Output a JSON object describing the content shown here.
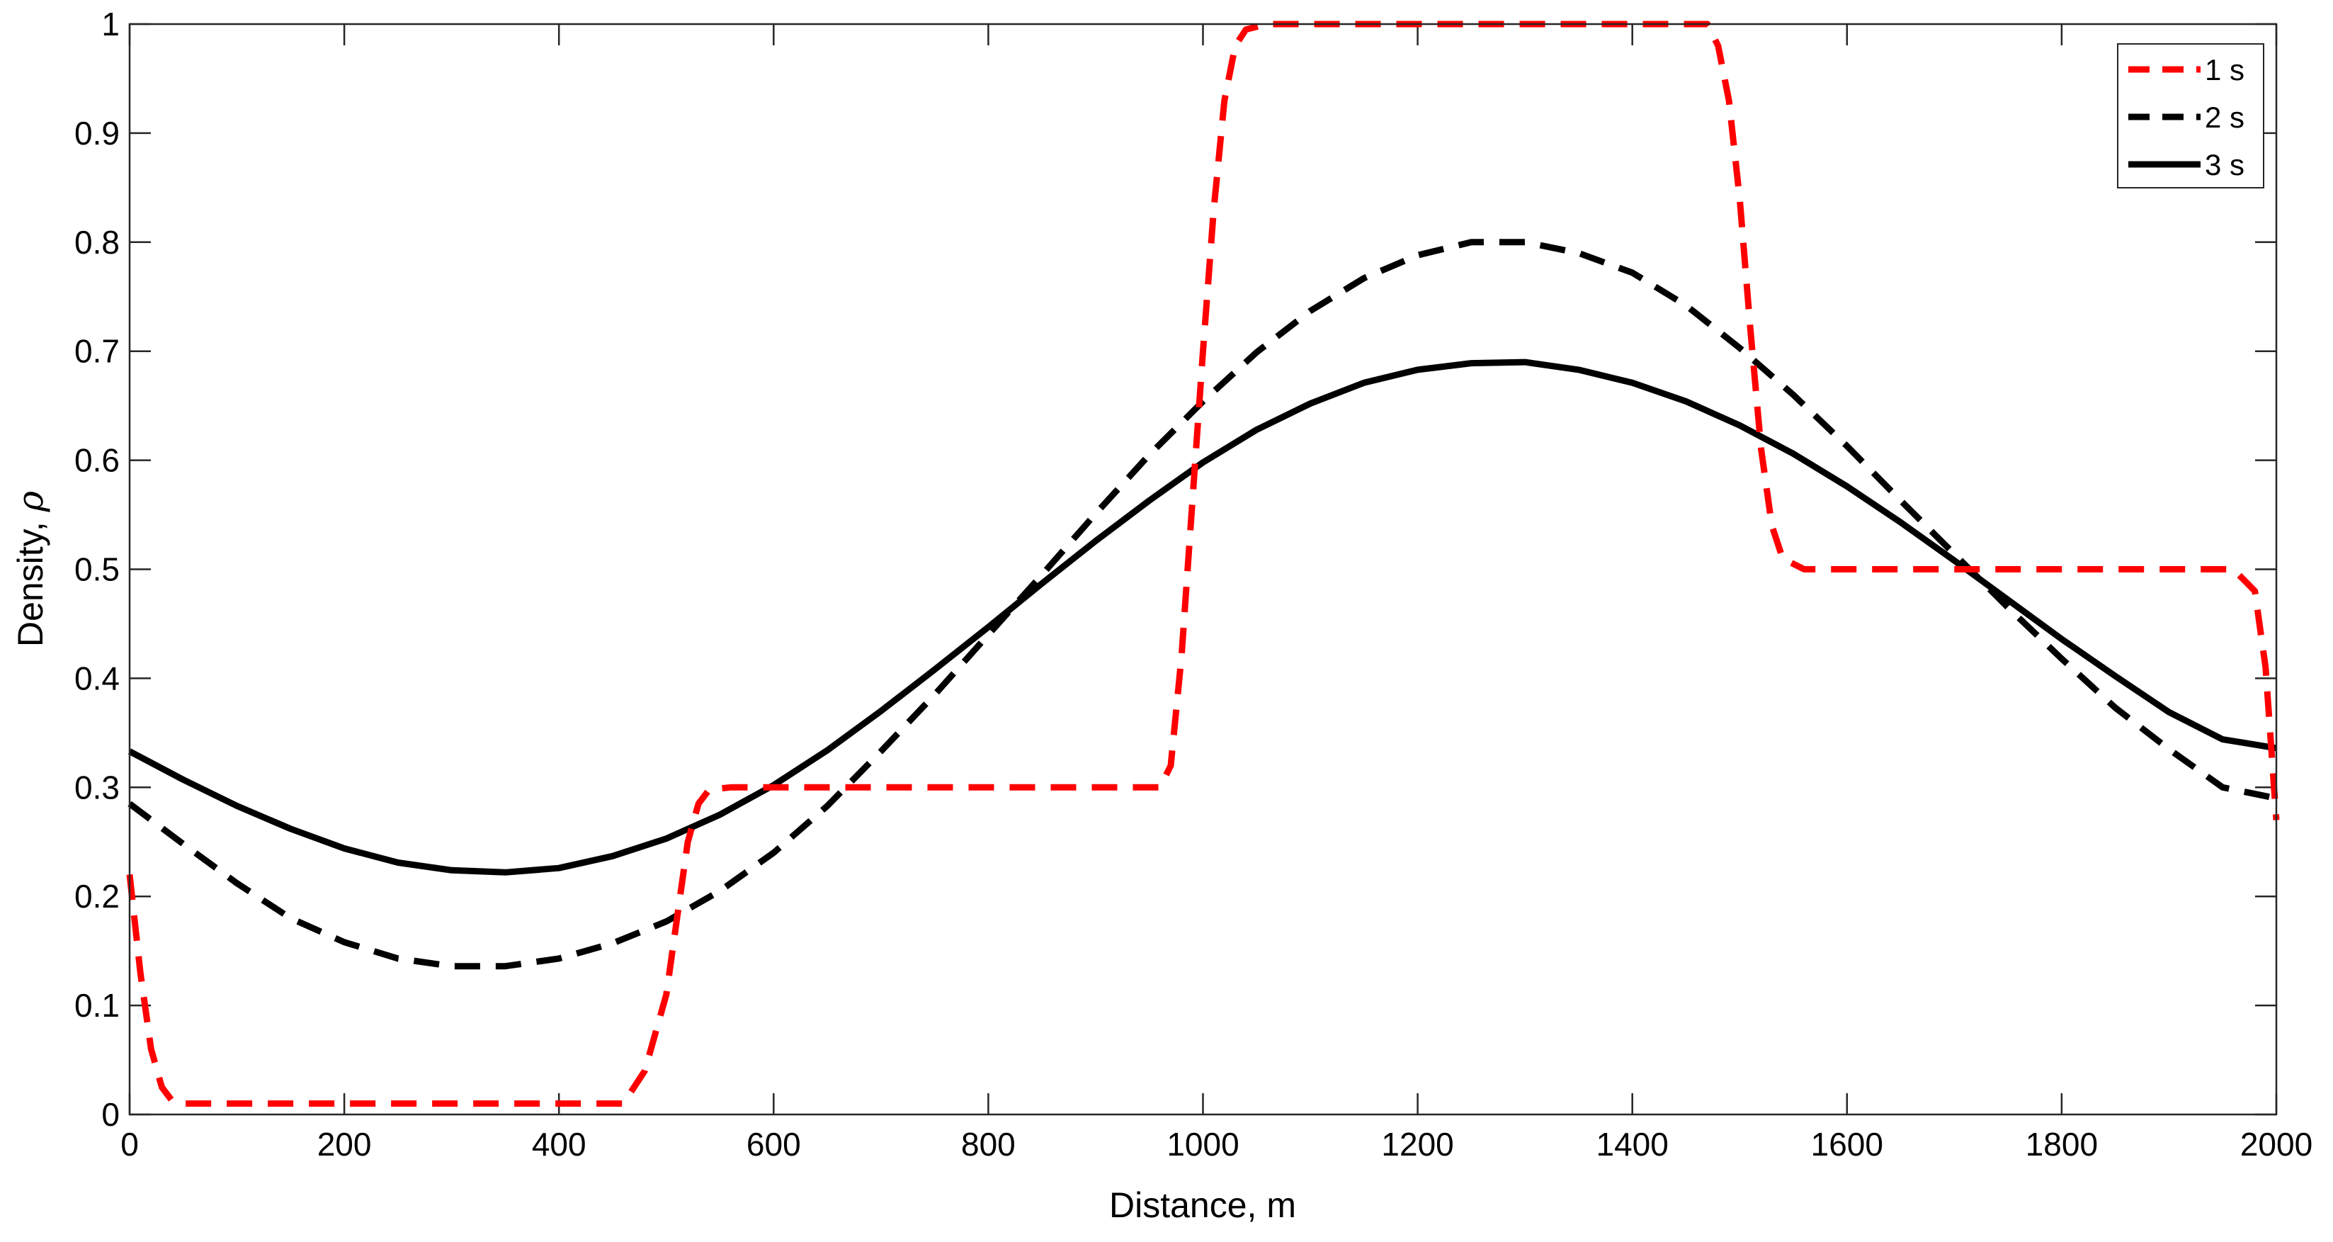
{
  "chart_data": {
    "type": "line",
    "title": "",
    "xlabel": "Distance, m",
    "ylabel": "Density, ",
    "ylabel_symbol": "ρ",
    "xlim": [
      0,
      2000
    ],
    "ylim": [
      0,
      1
    ],
    "xticks": [
      0,
      200,
      400,
      600,
      800,
      1000,
      1200,
      1400,
      1600,
      1800,
      2000
    ],
    "yticks": [
      0,
      0.1,
      0.2,
      0.3,
      0.4,
      0.5,
      0.6,
      0.7,
      0.8,
      0.9,
      1
    ],
    "xtick_labels": [
      "0",
      "200",
      "400",
      "600",
      "800",
      "1000",
      "1200",
      "1400",
      "1600",
      "1800",
      "2000"
    ],
    "ytick_labels": [
      "0",
      "0.1",
      "0.2",
      "0.3",
      "0.4",
      "0.5",
      "0.6",
      "0.7",
      "0.8",
      "0.9",
      "1"
    ],
    "grid": false,
    "legend_position": "top-right",
    "series": [
      {
        "name": "1 s",
        "color": "#ff0000",
        "style": "dashed",
        "x": [
          0,
          10,
          20,
          30,
          40,
          50,
          100,
          200,
          300,
          400,
          460,
          480,
          500,
          510,
          520,
          530,
          540,
          560,
          600,
          700,
          800,
          900,
          960,
          970,
          980,
          990,
          1000,
          1010,
          1020,
          1030,
          1040,
          1060,
          1100,
          1200,
          1300,
          1400,
          1470,
          1480,
          1490,
          1500,
          1510,
          1520,
          1530,
          1540,
          1560,
          1600,
          1700,
          1800,
          1900,
          1960,
          1980,
          1990,
          2000
        ],
        "y": [
          0.22,
          0.13,
          0.06,
          0.025,
          0.012,
          0.01,
          0.01,
          0.01,
          0.01,
          0.01,
          0.01,
          0.04,
          0.11,
          0.18,
          0.25,
          0.285,
          0.298,
          0.3,
          0.3,
          0.3,
          0.3,
          0.3,
          0.3,
          0.32,
          0.42,
          0.56,
          0.7,
          0.83,
          0.93,
          0.98,
          0.995,
          1.0,
          1.0,
          1.0,
          1.0,
          1.0,
          1.0,
          0.98,
          0.93,
          0.84,
          0.72,
          0.61,
          0.54,
          0.51,
          0.5,
          0.5,
          0.5,
          0.5,
          0.5,
          0.5,
          0.48,
          0.41,
          0.27
        ]
      },
      {
        "name": "2 s",
        "color": "#000000",
        "style": "dashed",
        "x": [
          0,
          50,
          100,
          150,
          200,
          250,
          300,
          350,
          400,
          450,
          500,
          550,
          600,
          650,
          700,
          750,
          800,
          850,
          900,
          950,
          1000,
          1050,
          1100,
          1150,
          1200,
          1250,
          1300,
          1350,
          1400,
          1450,
          1500,
          1550,
          1600,
          1650,
          1700,
          1750,
          1800,
          1850,
          1900,
          1950,
          2000
        ],
        "y": [
          0.285,
          0.248,
          0.212,
          0.18,
          0.158,
          0.143,
          0.136,
          0.136,
          0.143,
          0.157,
          0.177,
          0.205,
          0.24,
          0.283,
          0.333,
          0.385,
          0.44,
          0.495,
          0.551,
          0.605,
          0.654,
          0.699,
          0.737,
          0.767,
          0.788,
          0.8,
          0.8,
          0.79,
          0.772,
          0.742,
          0.703,
          0.66,
          0.613,
          0.563,
          0.514,
          0.465,
          0.418,
          0.373,
          0.335,
          0.3,
          0.29
        ]
      },
      {
        "name": "3 s",
        "color": "#000000",
        "style": "solid",
        "x": [
          0,
          50,
          100,
          150,
          200,
          250,
          300,
          350,
          400,
          450,
          500,
          550,
          600,
          650,
          700,
          750,
          800,
          850,
          900,
          950,
          1000,
          1050,
          1100,
          1150,
          1200,
          1250,
          1300,
          1350,
          1400,
          1450,
          1500,
          1550,
          1600,
          1650,
          1700,
          1750,
          1800,
          1850,
          1900,
          1950,
          2000
        ],
        "y": [
          0.333,
          0.307,
          0.283,
          0.262,
          0.244,
          0.231,
          0.224,
          0.222,
          0.226,
          0.237,
          0.253,
          0.275,
          0.302,
          0.334,
          0.37,
          0.408,
          0.447,
          0.487,
          0.526,
          0.563,
          0.598,
          0.628,
          0.652,
          0.671,
          0.683,
          0.689,
          0.69,
          0.683,
          0.671,
          0.654,
          0.632,
          0.606,
          0.576,
          0.543,
          0.508,
          0.472,
          0.436,
          0.402,
          0.369,
          0.344,
          0.336
        ]
      }
    ]
  }
}
